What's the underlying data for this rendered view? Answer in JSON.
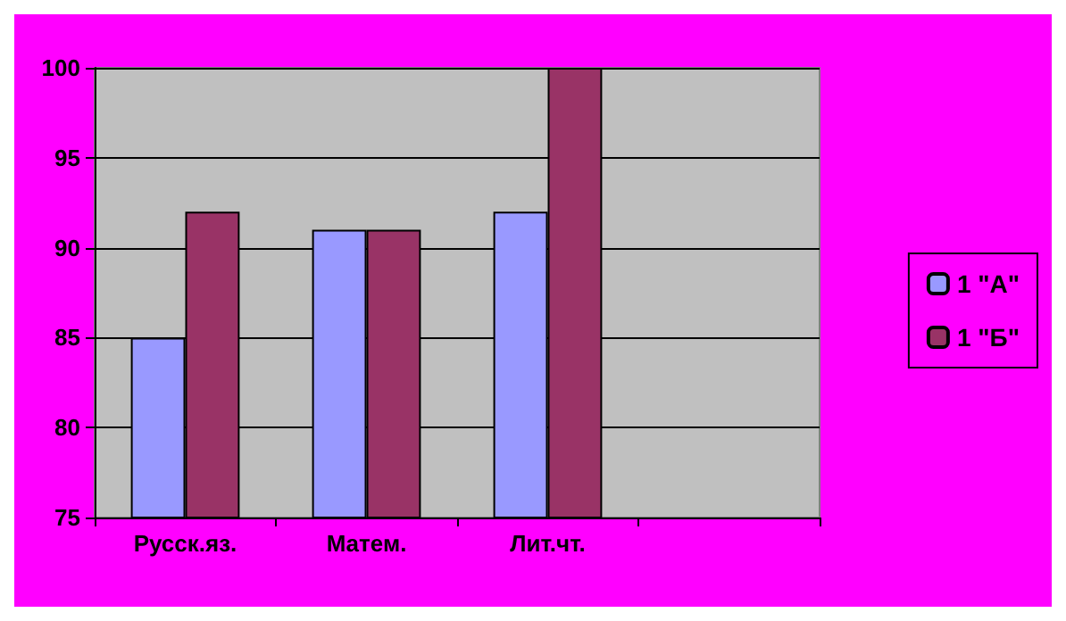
{
  "chart_data": {
    "type": "bar",
    "categories": [
      "Русск.яз.",
      "Матем.",
      "Лит.чт.",
      null
    ],
    "series": [
      {
        "name": "1 \"А\"",
        "color": "#9999ff",
        "values": [
          85,
          91,
          92,
          null
        ]
      },
      {
        "name": "1 \"Б\"",
        "color": "#993366",
        "values": [
          92,
          91,
          100,
          null
        ]
      }
    ],
    "ylim": [
      75,
      100
    ],
    "yticks": [
      75,
      80,
      85,
      90,
      95,
      100
    ],
    "grid": "y",
    "legend": "right"
  }
}
